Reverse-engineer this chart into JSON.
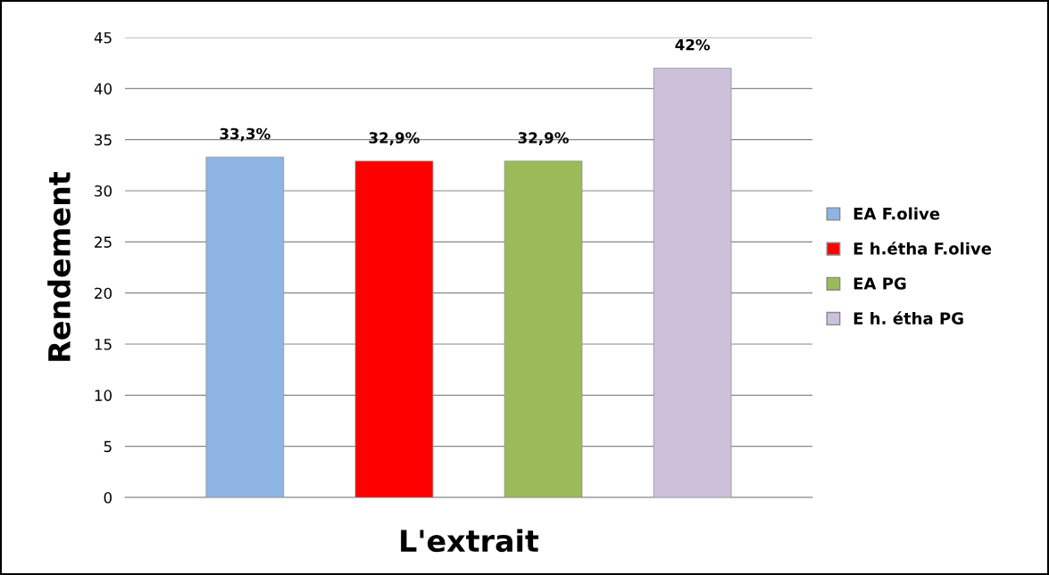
{
  "chart_data": {
    "type": "bar",
    "xlabel": "L'extrait",
    "ylabel": "Rendement",
    "categories": [
      null
    ],
    "series": [
      {
        "name": "EA F.olive",
        "color": "#8db4e2",
        "values": [
          33.3
        ],
        "value_labels": [
          "33,3%"
        ]
      },
      {
        "name": "E h.étha F.olive",
        "color": "#ff0000",
        "values": [
          32.9
        ],
        "value_labels": [
          "32,9%"
        ]
      },
      {
        "name": "EA PG",
        "color": "#9bbb59",
        "values": [
          32.9
        ],
        "value_labels": [
          "32,9%"
        ]
      },
      {
        "name": "E h. étha PG",
        "color": "#ccc0da",
        "values": [
          42
        ],
        "value_labels": [
          "42%"
        ]
      }
    ],
    "ylim": [
      0,
      45
    ],
    "yticks": [
      0,
      5,
      10,
      15,
      20,
      25,
      30,
      35,
      40,
      45
    ],
    "grid": "y",
    "legend": "right"
  }
}
